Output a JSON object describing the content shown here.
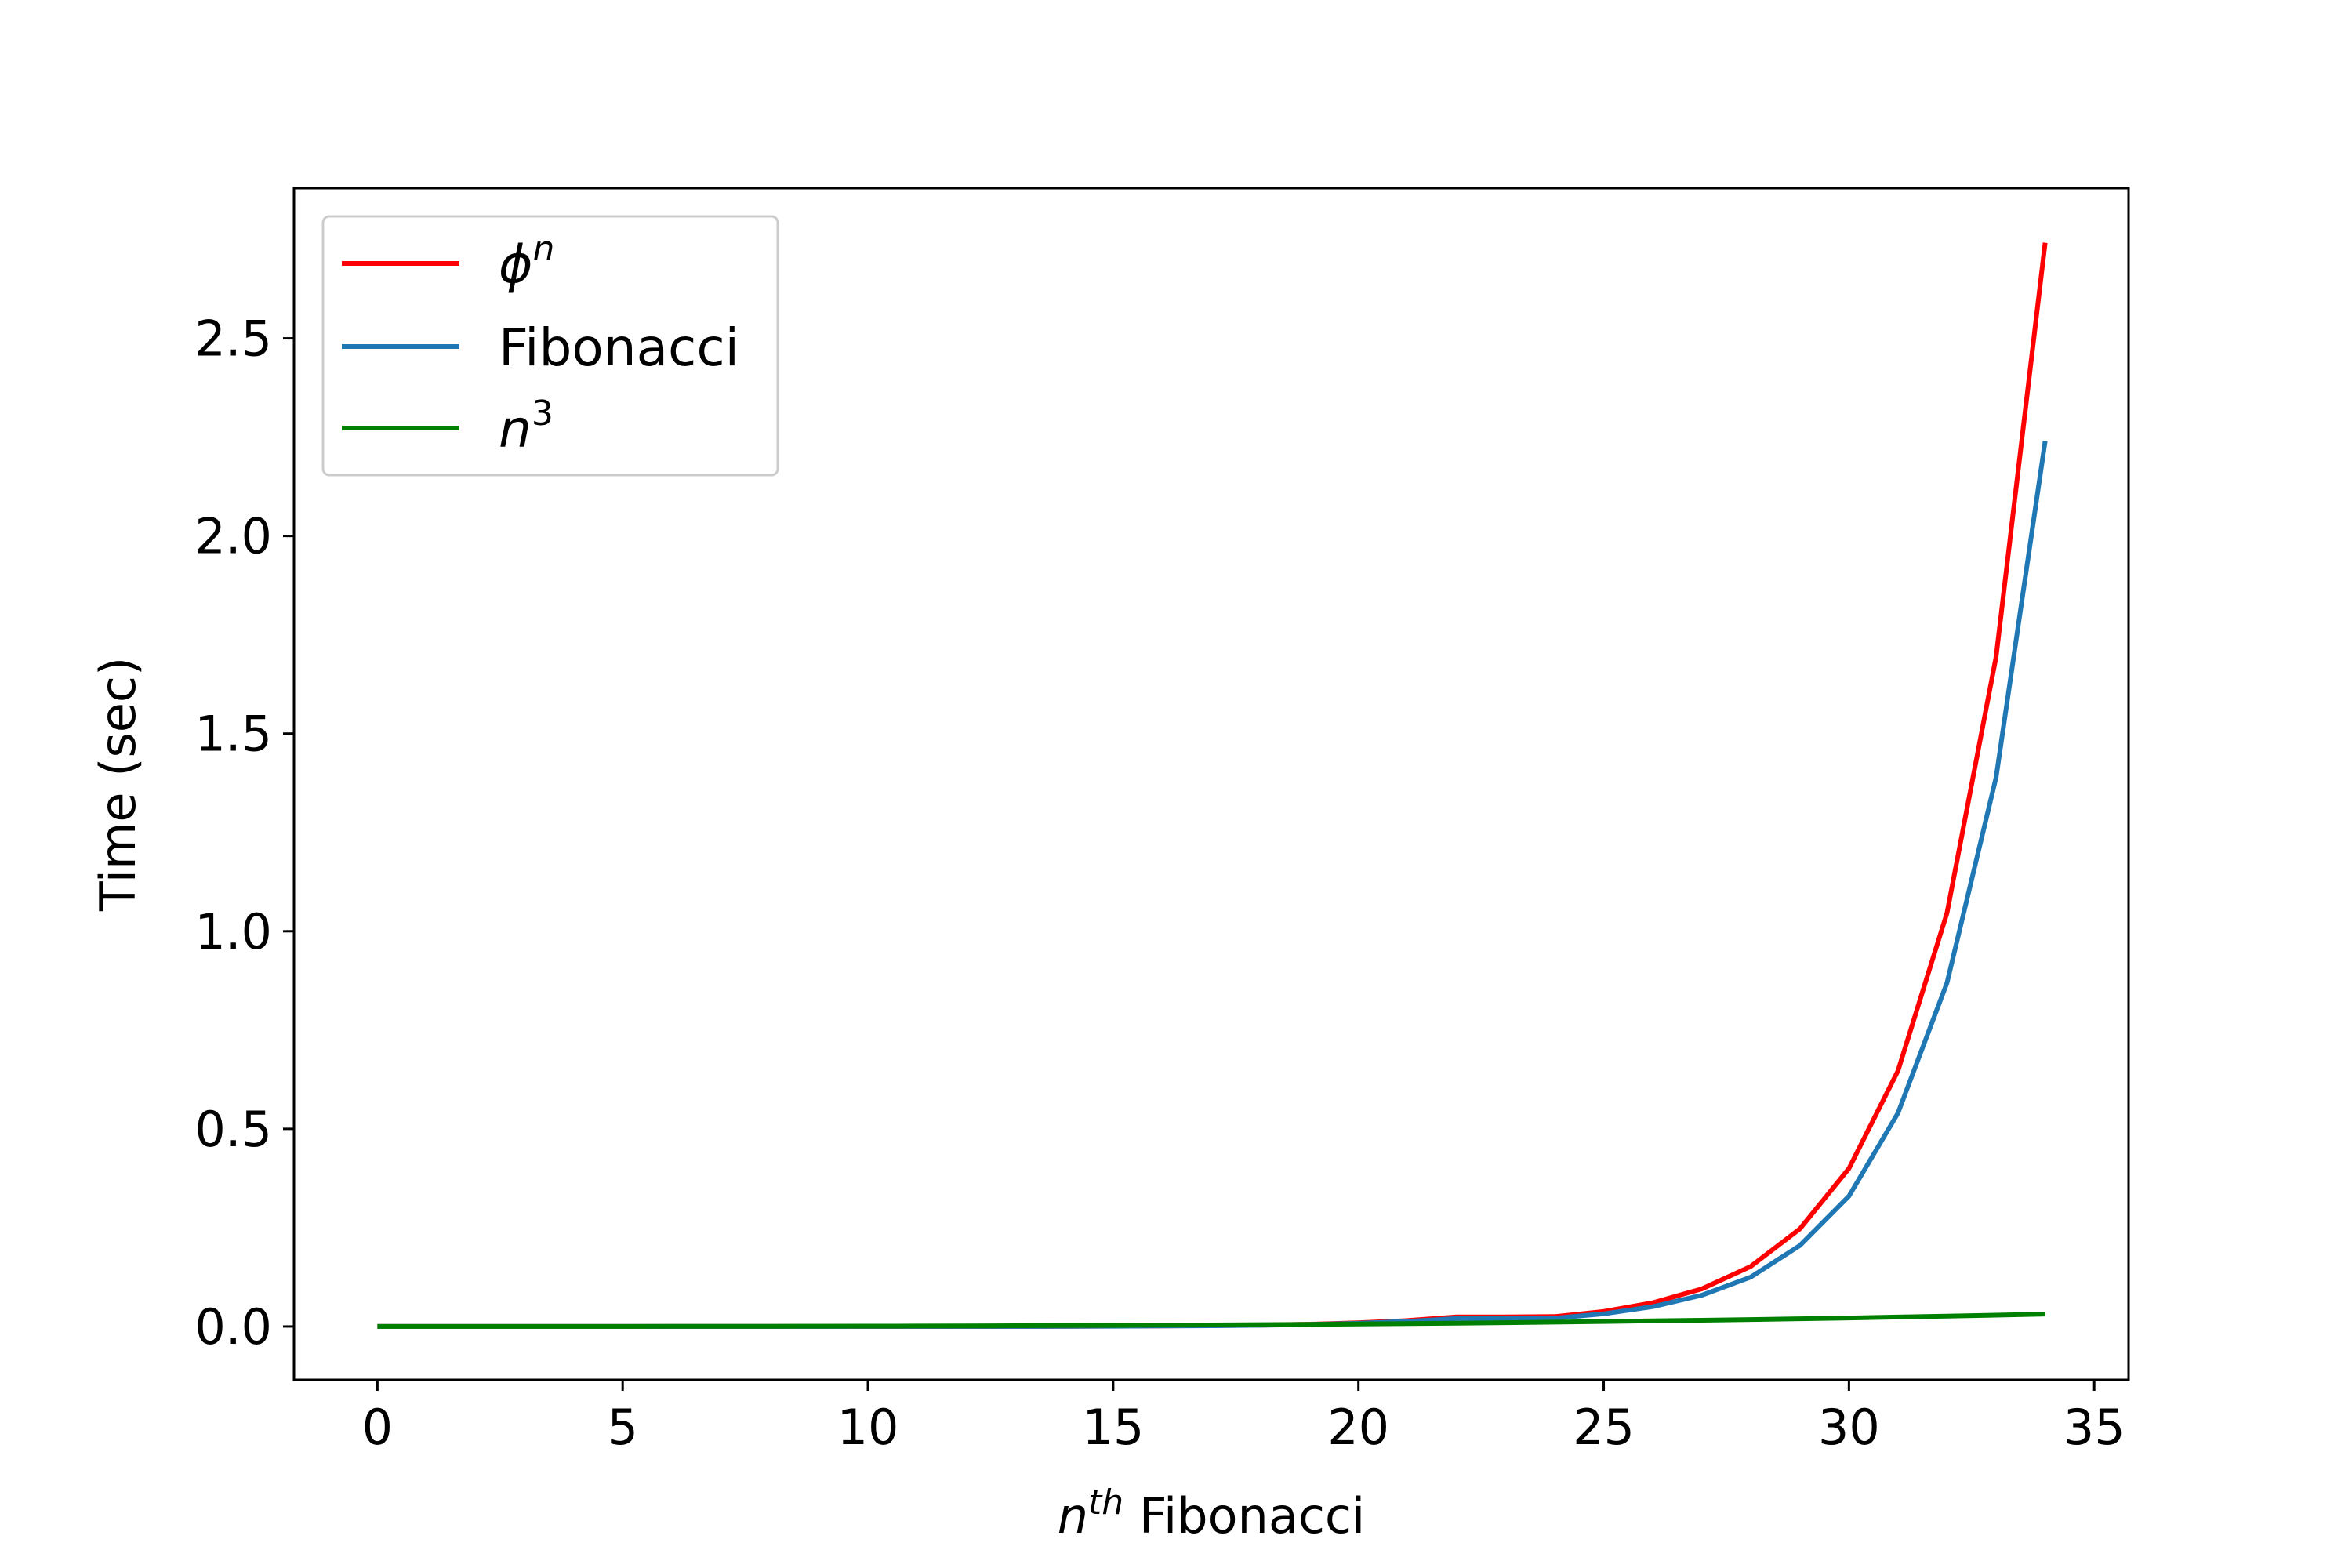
{
  "chart_data": {
    "type": "line",
    "xlabel": {
      "base": "n",
      "sup": "th",
      "text": " Fibonacci"
    },
    "ylabel": "Time (sec)",
    "xlim": [
      -1.7,
      35.7
    ],
    "ylim": [
      -0.135,
      2.88
    ],
    "xticks": [
      0,
      5,
      10,
      15,
      20,
      25,
      30,
      35
    ],
    "xtick_labels": [
      "0",
      "5",
      "10",
      "15",
      "20",
      "25",
      "30",
      "35"
    ],
    "yticks": [
      0.0,
      0.5,
      1.0,
      1.5,
      2.0,
      2.5
    ],
    "ytick_labels": [
      "0.0",
      "0.5",
      "1.0",
      "1.5",
      "2.0",
      "2.5"
    ],
    "grid": false,
    "legend": {
      "placement": "upper-left",
      "entries": [
        {
          "base": "ϕ",
          "sup": "n",
          "color": "#ff0000"
        },
        {
          "base": "",
          "sup": "",
          "text": "Fibonacci",
          "color": "#1f77b4"
        },
        {
          "base": "n",
          "sup": "3",
          "color": "#008000"
        }
      ]
    },
    "series": [
      {
        "color": "#ff0000",
        "x": [
          0,
          1,
          2,
          3,
          4,
          5,
          6,
          7,
          8,
          9,
          10,
          11,
          12,
          13,
          14,
          15,
          16,
          17,
          18,
          19,
          20,
          21,
          22,
          23,
          24,
          25,
          26,
          27,
          28,
          29,
          30,
          31,
          32,
          33,
          34
        ],
        "values": [
          0,
          0,
          0,
          0,
          0,
          0,
          0,
          0,
          0,
          0,
          0,
          0,
          0,
          0,
          0.0005,
          0.0008,
          0.0014,
          0.0022,
          0.0035,
          0.0057,
          0.0093,
          0.015,
          0.024,
          0.024,
          0.025,
          0.038,
          0.06,
          0.095,
          0.152,
          0.247,
          0.4,
          0.647,
          1.047,
          1.695,
          2.742
        ]
      },
      {
        "color": "#1f77b4",
        "x": [
          0,
          1,
          2,
          3,
          4,
          5,
          6,
          7,
          8,
          9,
          10,
          11,
          12,
          13,
          14,
          15,
          16,
          17,
          18,
          19,
          20,
          21,
          22,
          23,
          24,
          25,
          26,
          27,
          28,
          29,
          30,
          31,
          32,
          33,
          34
        ],
        "values": [
          0,
          0,
          0,
          0,
          0,
          0,
          0,
          0,
          0,
          0,
          0,
          0,
          0,
          0,
          0.0004,
          0.0007,
          0.0012,
          0.0019,
          0.003,
          0.005,
          0.008,
          0.013,
          0.02,
          0.02,
          0.021,
          0.032,
          0.05,
          0.079,
          0.125,
          0.205,
          0.33,
          0.54,
          0.87,
          1.39,
          2.24
        ]
      },
      {
        "color": "#008000",
        "x": [
          0,
          1,
          2,
          3,
          4,
          5,
          6,
          7,
          8,
          9,
          10,
          11,
          12,
          13,
          14,
          15,
          16,
          17,
          18,
          19,
          20,
          21,
          22,
          23,
          24,
          25,
          26,
          27,
          28,
          29,
          30,
          31,
          32,
          33,
          34
        ],
        "values": [
          0,
          0,
          0,
          0,
          0,
          0.0001,
          0.0002,
          0.0003,
          0.0004,
          0.0006,
          0.0008,
          0.0011,
          0.0014,
          0.0018,
          0.0022,
          0.0027,
          0.0033,
          0.0039,
          0.0047,
          0.0055,
          0.0064,
          0.0074,
          0.0085,
          0.0097,
          0.011,
          0.0125,
          0.0141,
          0.0158,
          0.0176,
          0.0195,
          0.0216,
          0.0238,
          0.0262,
          0.0287,
          0.0314
        ]
      }
    ]
  }
}
